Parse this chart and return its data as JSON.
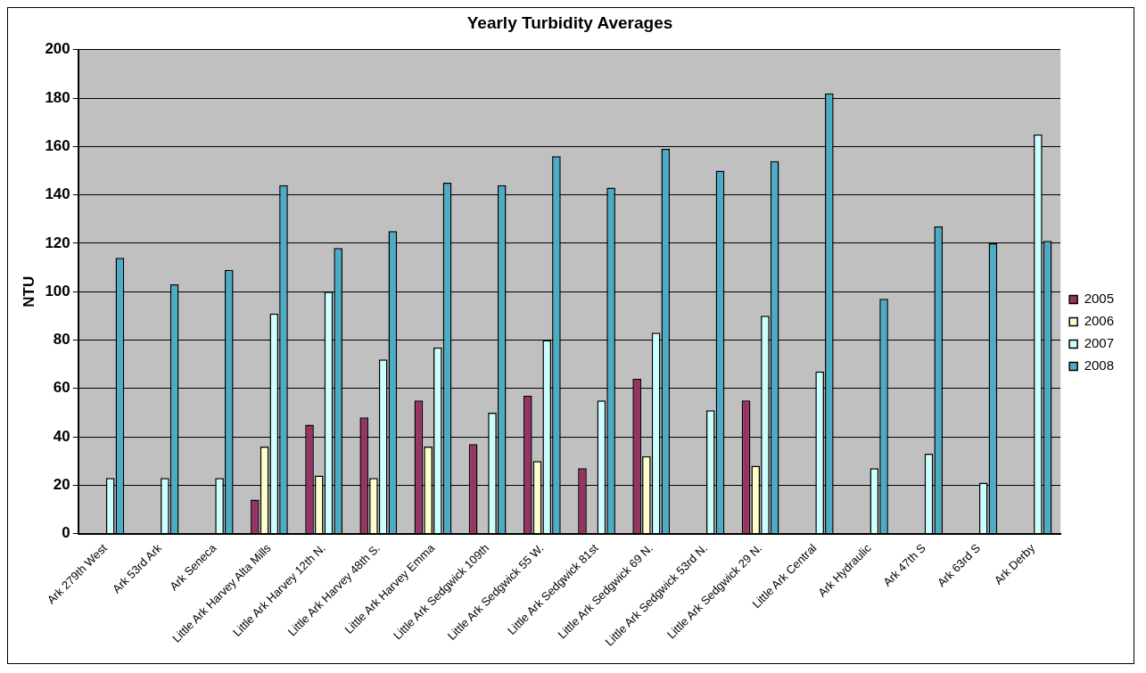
{
  "chart_data": {
    "type": "bar",
    "title": "Yearly Turbidity Averages",
    "ylabel": "NTU",
    "categories": [
      "Ark 279th West",
      "Ark 53rd Ark",
      "Ark Seneca",
      "Little Ark Harvey Alta Mills",
      "Little Ark Harvey 12th N.",
      "Little Ark Harvey 48th S.",
      "Little Ark Harvey Emma",
      "Little Ark Sedgwick 109th",
      "Little Ark Sedgwick 55 W.",
      "Little Ark Sedgwick 81st",
      "Little Ark Sedgwick 69 N.",
      "Little Ark Sedgwick 53rd N.",
      "Little Ark Sedgwick 29 N.",
      "Little Ark Central",
      "Ark Hydraulic",
      "Ark 47th S",
      "Ark 63rd S",
      "Ark Derby"
    ],
    "series": [
      {
        "name": "2005",
        "color": "#993366",
        "values": [
          null,
          null,
          null,
          14,
          45,
          48,
          55,
          37,
          57,
          27,
          64,
          null,
          55,
          null,
          null,
          null,
          null,
          null
        ]
      },
      {
        "name": "2006",
        "color": "#ffffcc",
        "values": [
          null,
          null,
          null,
          36,
          24,
          23,
          36,
          null,
          30,
          null,
          32,
          null,
          28,
          null,
          null,
          null,
          null,
          null
        ]
      },
      {
        "name": "2007",
        "color": "#ccffff",
        "values": [
          23,
          23,
          23,
          91,
          100,
          72,
          77,
          50,
          80,
          55,
          83,
          51,
          90,
          67,
          27,
          33,
          21,
          165
        ]
      },
      {
        "name": "2008",
        "color": "#4bacc6",
        "values": [
          114,
          103,
          109,
          144,
          118,
          125,
          145,
          144,
          156,
          143,
          159,
          150,
          154,
          182,
          97,
          127,
          120,
          121
        ]
      }
    ],
    "ylim": [
      0,
      200
    ],
    "yticks": [
      0,
      20,
      40,
      60,
      80,
      100,
      120,
      140,
      160,
      180,
      200
    ],
    "grid": "y",
    "legend": "right"
  }
}
